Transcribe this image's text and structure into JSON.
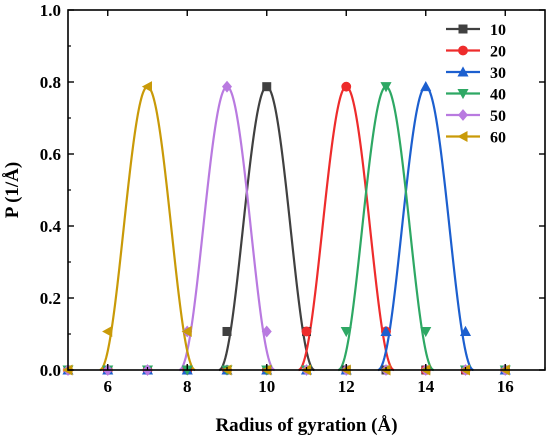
{
  "chart_data": {
    "type": "line",
    "xlabel": "Radius of gyration (Å)",
    "ylabel": "P (1/Å)",
    "xlim": [
      5,
      17
    ],
    "ylim": [
      0,
      1.0
    ],
    "x_ticks": [
      6,
      8,
      10,
      12,
      14,
      16
    ],
    "y_ticks": [
      0.0,
      0.2,
      0.4,
      0.6,
      0.8,
      1.0
    ],
    "x_tick_labels": [
      "6",
      "8",
      "10",
      "12",
      "14",
      "16"
    ],
    "y_tick_labels": [
      "0.0",
      "0.2",
      "0.4",
      "0.6",
      "0.8",
      "1.0"
    ],
    "grid": false,
    "legend_position": "top-right",
    "series": [
      {
        "name": "10",
        "color": "#404040",
        "marker": "square",
        "curve": {
          "center": 10.0,
          "halfwidth": 1.2,
          "peak": 0.787
        },
        "points": [
          [
            5,
            0
          ],
          [
            6,
            0
          ],
          [
            7,
            0
          ],
          [
            8,
            0
          ],
          [
            9,
            0.107
          ],
          [
            10,
            0.787
          ],
          [
            11,
            0.107
          ],
          [
            12,
            0
          ],
          [
            13,
            0
          ],
          [
            14,
            0
          ],
          [
            15,
            0
          ],
          [
            16,
            0
          ]
        ]
      },
      {
        "name": "20",
        "color": "#ee2c2c",
        "marker": "circle",
        "curve": {
          "center": 12.0,
          "halfwidth": 1.2,
          "peak": 0.787
        },
        "points": [
          [
            5,
            0
          ],
          [
            6,
            0
          ],
          [
            7,
            0
          ],
          [
            8,
            0
          ],
          [
            9,
            0
          ],
          [
            10,
            0
          ],
          [
            11,
            0.107
          ],
          [
            12,
            0.787
          ],
          [
            13,
            0.107
          ],
          [
            14,
            0
          ],
          [
            15,
            0
          ],
          [
            16,
            0
          ]
        ]
      },
      {
        "name": "30",
        "color": "#1c5fcf",
        "marker": "triangle-up",
        "curve": {
          "center": 14.0,
          "halfwidth": 1.2,
          "peak": 0.787
        },
        "points": [
          [
            5,
            0
          ],
          [
            6,
            0
          ],
          [
            7,
            0
          ],
          [
            8,
            0
          ],
          [
            9,
            0
          ],
          [
            10,
            0
          ],
          [
            11,
            0
          ],
          [
            12,
            0
          ],
          [
            13,
            0.107
          ],
          [
            14,
            0.787
          ],
          [
            15,
            0.107
          ],
          [
            16,
            0
          ]
        ]
      },
      {
        "name": "40",
        "color": "#2ea864",
        "marker": "triangle-down",
        "curve": {
          "center": 13.0,
          "halfwidth": 1.2,
          "peak": 0.787
        },
        "points": [
          [
            5,
            0
          ],
          [
            6,
            0
          ],
          [
            7,
            0
          ],
          [
            8,
            0
          ],
          [
            9,
            0
          ],
          [
            10,
            0
          ],
          [
            11,
            0
          ],
          [
            12,
            0.107
          ],
          [
            13,
            0.787
          ],
          [
            14,
            0.107
          ],
          [
            15,
            0
          ],
          [
            16,
            0
          ]
        ]
      },
      {
        "name": "50",
        "color": "#b97ae0",
        "marker": "diamond",
        "curve": {
          "center": 9.0,
          "halfwidth": 1.2,
          "peak": 0.787
        },
        "points": [
          [
            5,
            0
          ],
          [
            6,
            0
          ],
          [
            7,
            0
          ],
          [
            8,
            0.107
          ],
          [
            9,
            0.787
          ],
          [
            10,
            0.107
          ],
          [
            11,
            0
          ],
          [
            12,
            0
          ],
          [
            13,
            0
          ],
          [
            14,
            0
          ],
          [
            15,
            0
          ],
          [
            16,
            0
          ]
        ]
      },
      {
        "name": "60",
        "color": "#c99a08",
        "marker": "triangle-left",
        "curve": {
          "center": 7.0,
          "halfwidth": 1.2,
          "peak": 0.787
        },
        "points": [
          [
            5,
            0
          ],
          [
            6,
            0.107
          ],
          [
            7,
            0.787
          ],
          [
            8,
            0.107
          ],
          [
            9,
            0
          ],
          [
            10,
            0
          ],
          [
            11,
            0
          ],
          [
            12,
            0
          ],
          [
            13,
            0
          ],
          [
            14,
            0
          ],
          [
            15,
            0
          ],
          [
            16,
            0
          ]
        ]
      }
    ]
  }
}
